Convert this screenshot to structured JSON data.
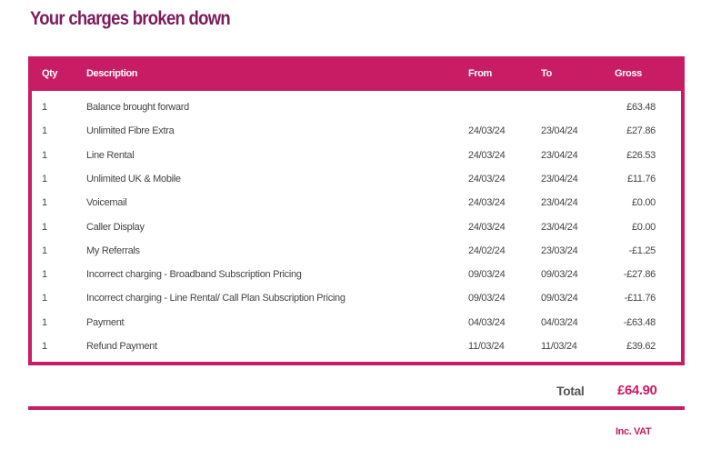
{
  "title": "Your charges broken down",
  "colors": {
    "accent": "#c81c64",
    "title": "#7b1c5c"
  },
  "table": {
    "headers": {
      "qty": "Qty",
      "description": "Description",
      "from": "From",
      "to": "To",
      "gross": "Gross"
    },
    "rows": [
      {
        "qty": "1",
        "description": "Balance brought forward",
        "from": "",
        "to": "",
        "gross": "£63.48"
      },
      {
        "qty": "1",
        "description": "Unlimited Fibre Extra",
        "from": "24/03/24",
        "to": "23/04/24",
        "gross": "£27.86"
      },
      {
        "qty": "1",
        "description": "Line Rental",
        "from": "24/03/24",
        "to": "23/04/24",
        "gross": "£26.53"
      },
      {
        "qty": "1",
        "description": "Unlimited UK & Mobile",
        "from": "24/03/24",
        "to": "23/04/24",
        "gross": "£11.76"
      },
      {
        "qty": "1",
        "description": "Voicemail",
        "from": "24/03/24",
        "to": "23/04/24",
        "gross": "£0.00"
      },
      {
        "qty": "1",
        "description": "Caller Display",
        "from": "24/03/24",
        "to": "23/04/24",
        "gross": "£0.00"
      },
      {
        "qty": "1",
        "description": "My Referrals",
        "from": "24/02/24",
        "to": "23/03/24",
        "gross": "-£1.25"
      },
      {
        "qty": "1",
        "description": "Incorrect charging - Broadband Subscription Pricing",
        "from": "09/03/24",
        "to": "09/03/24",
        "gross": "-£27.86"
      },
      {
        "qty": "1",
        "description": "Incorrect charging - Line Rental/ Call Plan Subscription Pricing",
        "from": "09/03/24",
        "to": "09/03/24",
        "gross": "-£11.76"
      },
      {
        "qty": "1",
        "description": "Payment",
        "from": "04/03/24",
        "to": "04/03/24",
        "gross": "-£63.48"
      },
      {
        "qty": "1",
        "description": "Refund Payment",
        "from": "11/03/24",
        "to": "11/03/24",
        "gross": "£39.62"
      }
    ]
  },
  "total": {
    "label": "Total",
    "value": "£64.90",
    "note": "Inc. VAT"
  }
}
